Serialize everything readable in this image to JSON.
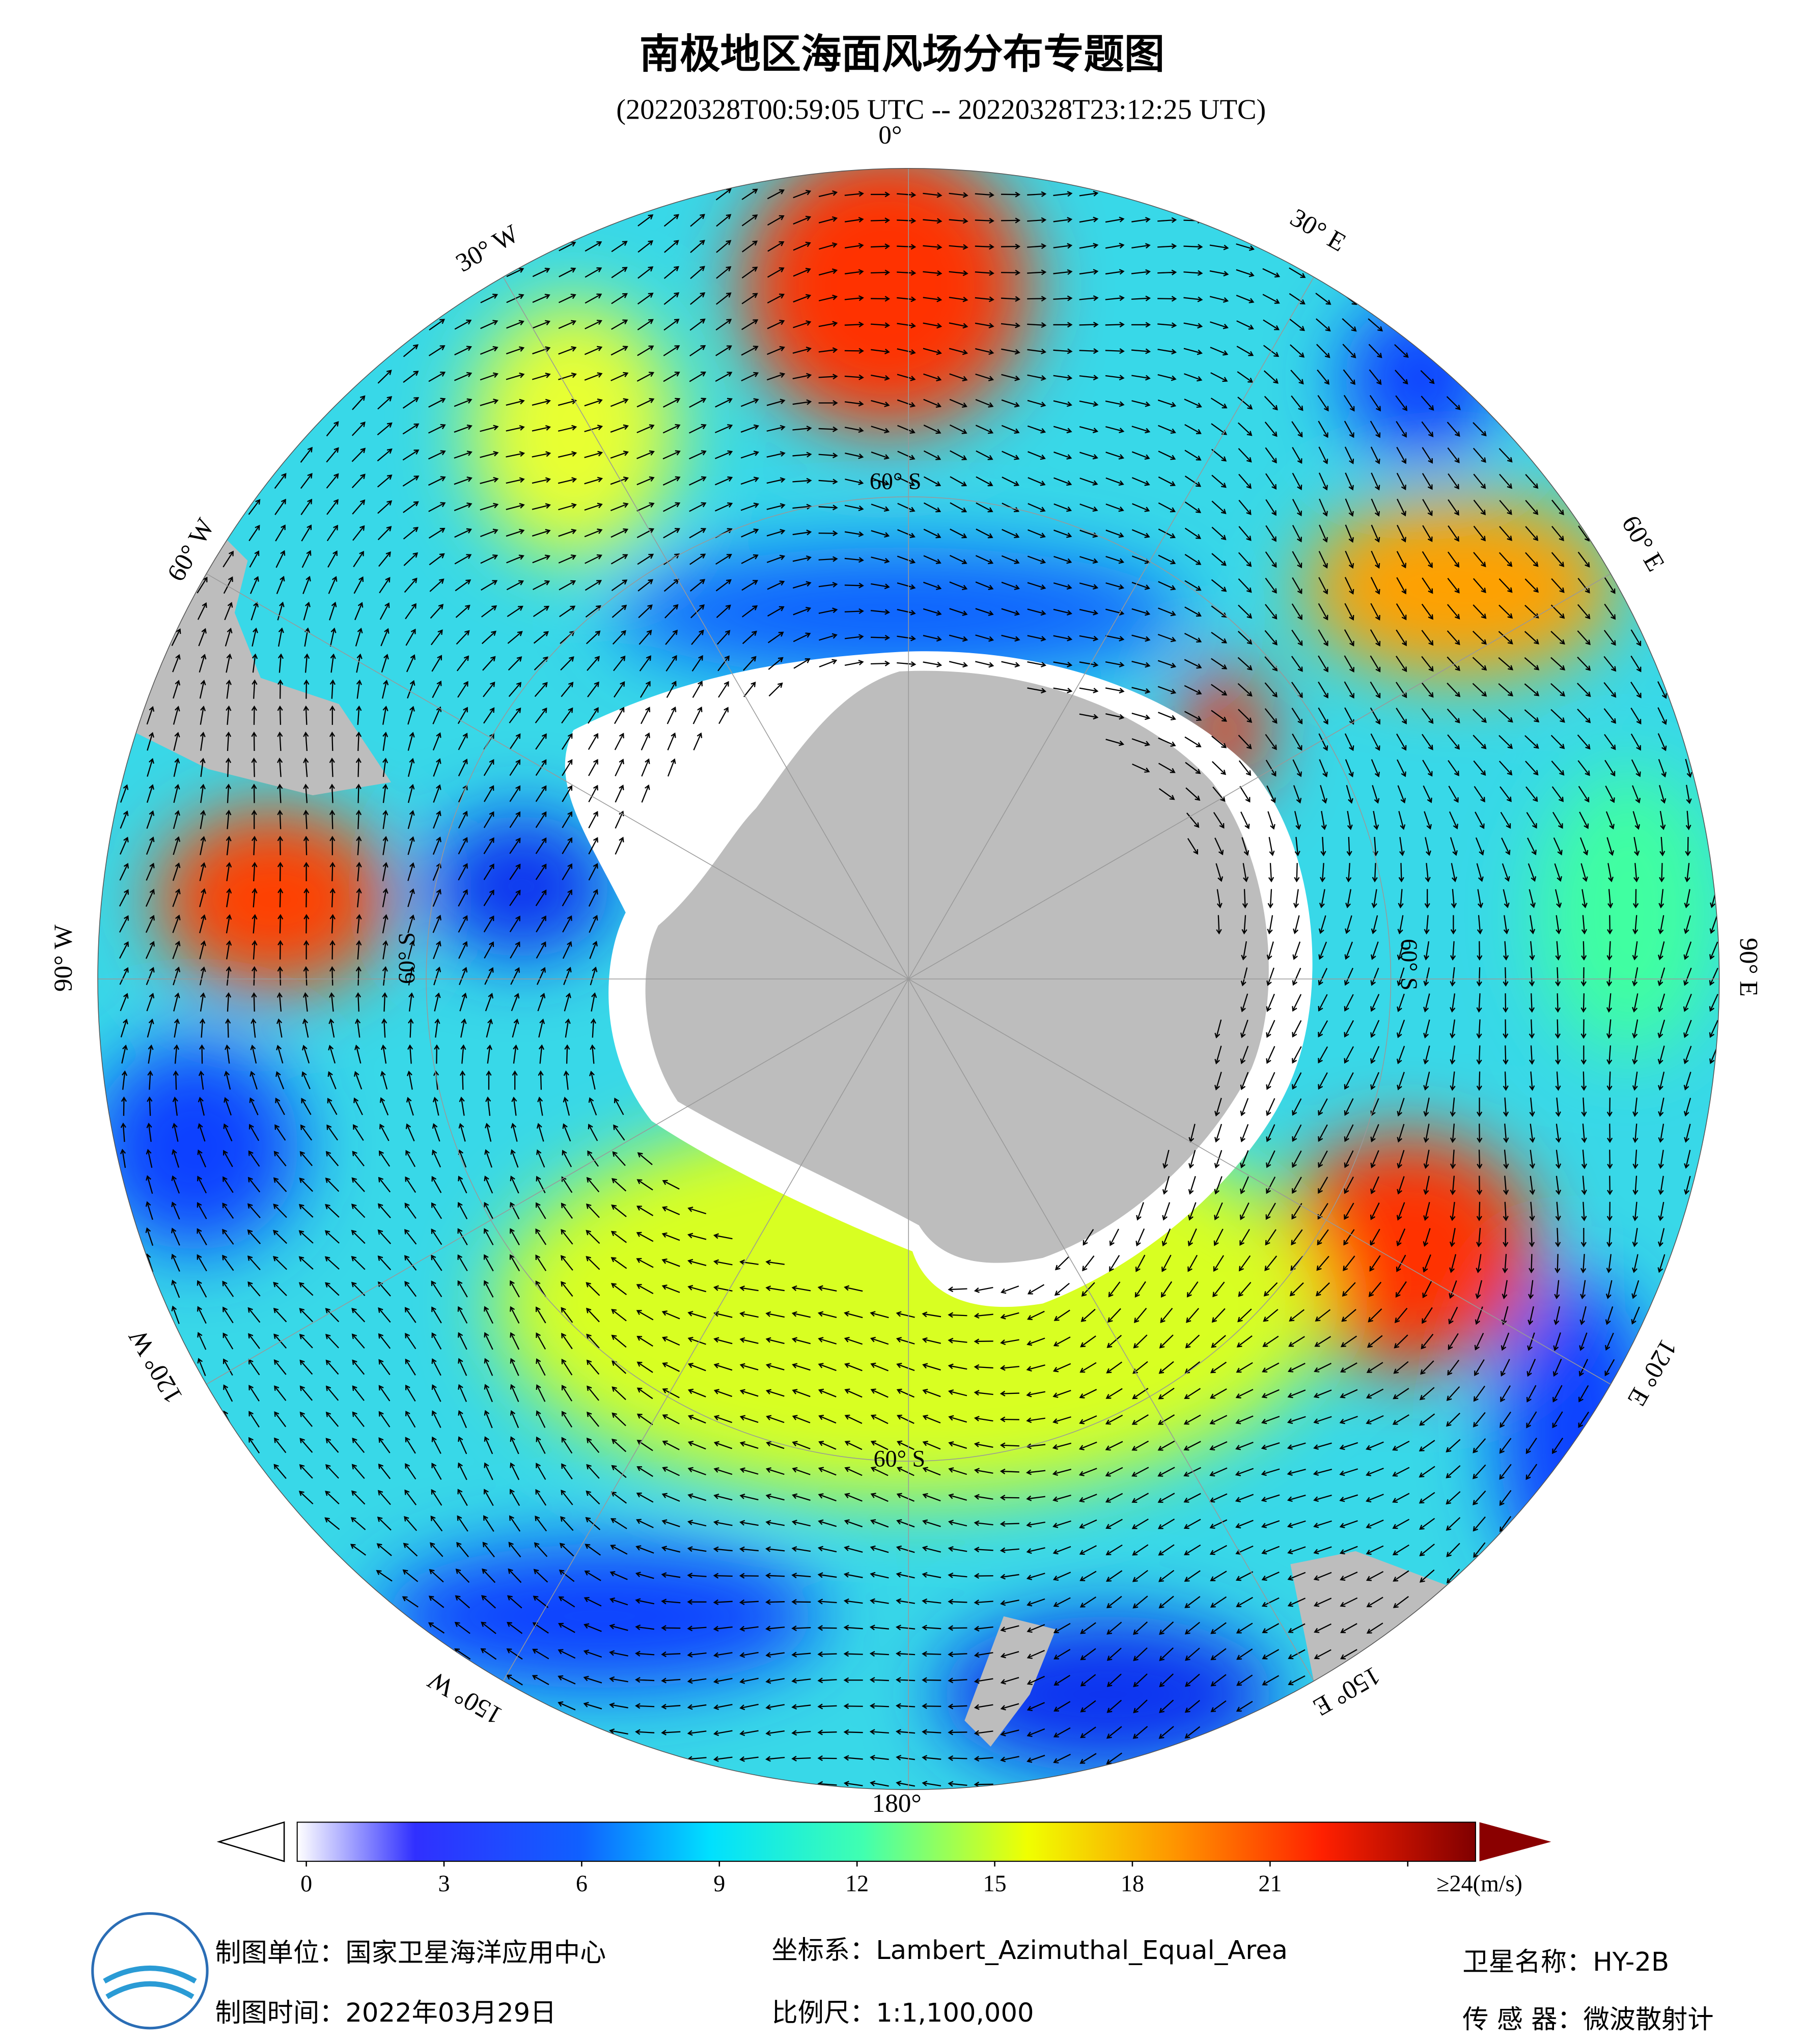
{
  "header": {
    "title": "南极地区海面风场分布专题图",
    "subtitle": "(20220328T00:59:05 UTC -- 20220328T23:12:25 UTC)"
  },
  "map": {
    "lon_labels": [
      "0°",
      "30° E",
      "60° E",
      "90° E",
      "120° E",
      "150° E",
      "180°",
      "150° W",
      "120° W",
      "90° W",
      "60° W",
      "30° W"
    ],
    "lat_labels": [
      "60° S",
      "60° S",
      "60° S",
      "60° S"
    ]
  },
  "colorbar": {
    "lim": [
      0,
      24
    ],
    "ticks": [
      0,
      3,
      6,
      9,
      12,
      15,
      18,
      21,
      {
        "value": 24,
        "label": "≥24(m/s)"
      }
    ]
  },
  "footer": {
    "unit": "制图单位：国家卫星海洋应用中心",
    "date": "制图时间：2022年03月29日",
    "crs": "坐标系：Lambert_Azimuthal_Equal_Area",
    "scale": "比例尺：1:1,100,000",
    "satellite": "卫星名称：HY-2B",
    "sensor": "传 感 器：微波散射计"
  }
}
